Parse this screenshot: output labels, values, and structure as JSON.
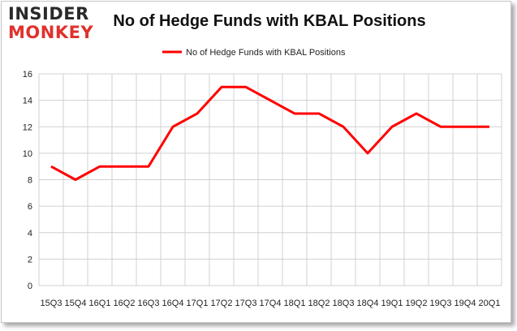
{
  "logo": {
    "line1": "INSIDER",
    "line2": "MONKEY"
  },
  "chart_data": {
    "type": "line",
    "title": "No of Hedge Funds with KBAL Positions",
    "xlabel": "",
    "ylabel": "",
    "categories": [
      "2015Q3",
      "2015Q4",
      "2016Q1",
      "2016Q2",
      "2016Q3",
      "2016Q4",
      "2017Q1",
      "2017Q2",
      "2017Q3",
      "2017Q4",
      "2018Q1",
      "2018Q2",
      "2018Q3",
      "2018Q4",
      "2019Q1",
      "2019Q2",
      "2019Q3",
      "2019Q4",
      "2020Q1"
    ],
    "tick_labels": [
      "15Q3",
      "15Q4",
      "16Q1",
      "16Q2",
      "16Q3",
      "16Q4",
      "17Q1",
      "17Q2",
      "17Q3",
      "17Q4",
      "18Q1",
      "18Q2",
      "18Q3",
      "18Q4",
      "19Q1",
      "19Q2",
      "19Q3",
      "19Q4",
      "20Q1"
    ],
    "series": [
      {
        "name": "No of Hedge Funds with KBAL Positions",
        "color": "#ff0000",
        "values": [
          9,
          8,
          9,
          9,
          9,
          12,
          13,
          15,
          15,
          14,
          13,
          13,
          12,
          10,
          12,
          13,
          12,
          12,
          12
        ]
      }
    ],
    "ylim": [
      0,
      16
    ],
    "yticks": [
      0,
      2,
      4,
      6,
      8,
      10,
      12,
      14,
      16
    ],
    "grid": true,
    "legend": "top-center"
  }
}
